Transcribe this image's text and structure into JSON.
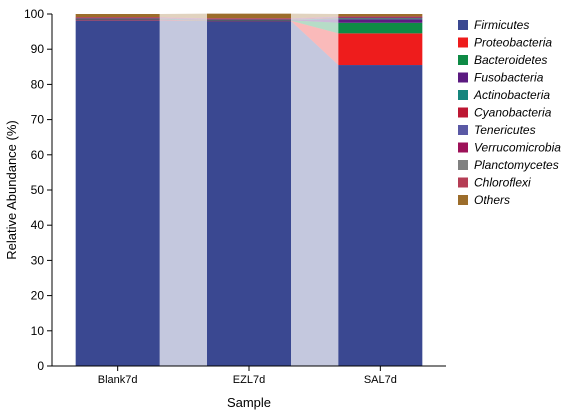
{
  "chart_data": {
    "type": "bar",
    "stacked": true,
    "categories": [
      "Blank7d",
      "EZL7d",
      "SAL7d"
    ],
    "xlabel": "Sample",
    "ylabel": "Relative Abundance (%)",
    "ylim": [
      0,
      100
    ],
    "yticks": [
      0,
      10,
      20,
      30,
      40,
      50,
      60,
      70,
      80,
      90,
      100
    ],
    "grid": false,
    "legend_position": "right",
    "series": [
      {
        "name": "Firmicutes",
        "color": "#3A4891",
        "values": [
          98.2,
          98.0,
          85.5
        ]
      },
      {
        "name": "Proteobacteria",
        "color": "#EE1C1C",
        "values": [
          0.2,
          0.1,
          9.0
        ]
      },
      {
        "name": "Bacteroidetes",
        "color": "#0E8A45",
        "values": [
          0.1,
          0.1,
          3.0
        ]
      },
      {
        "name": "Fusobacteria",
        "color": "#5B1A80",
        "values": [
          0.1,
          0.1,
          1.0
        ]
      },
      {
        "name": "Actinobacteria",
        "color": "#15857D",
        "values": [
          0.1,
          0.1,
          0.3
        ]
      },
      {
        "name": "Cyanobacteria",
        "color": "#BD1733",
        "values": [
          0.1,
          0.1,
          0.2
        ]
      },
      {
        "name": "Tenericutes",
        "color": "#5A59A5",
        "values": [
          0.1,
          0.1,
          0.1
        ]
      },
      {
        "name": "Verrucomicrobia",
        "color": "#9D1158",
        "values": [
          0.1,
          0.1,
          0.1
        ]
      },
      {
        "name": "Planctomycetes",
        "color": "#808080",
        "values": [
          0.0,
          0.0,
          0.0
        ]
      },
      {
        "name": "Chloroflexi",
        "color": "#B53D55",
        "values": [
          0.1,
          0.1,
          0.1
        ]
      },
      {
        "name": "Others",
        "color": "#9C6D2B",
        "values": [
          0.9,
          1.3,
          0.7
        ]
      }
    ]
  }
}
